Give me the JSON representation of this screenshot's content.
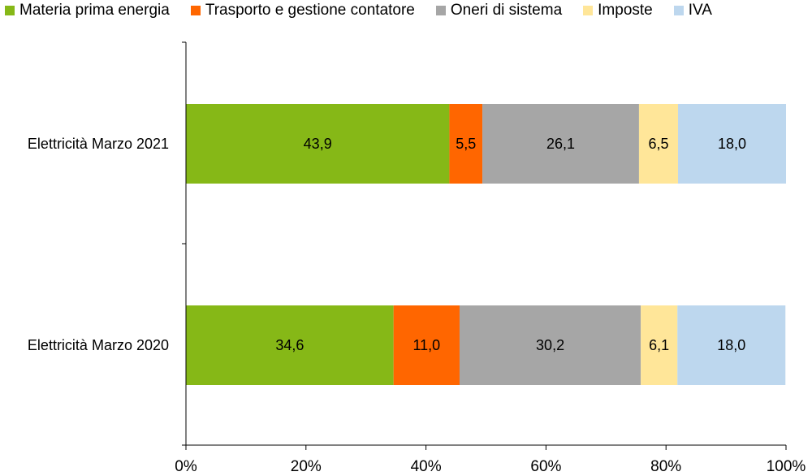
{
  "chart_data": {
    "type": "bar",
    "orientation": "horizontal",
    "stacked": true,
    "title": "",
    "xlabel": "",
    "ylabel": "",
    "xlim": [
      0,
      100
    ],
    "x_ticks": [
      "0%",
      "20%",
      "40%",
      "60%",
      "80%",
      "100%"
    ],
    "categories": [
      "Elettricità Marzo 2021",
      "Elettricità Marzo 2020"
    ],
    "series": [
      {
        "name": "Materia prima energia",
        "color": "#86B817",
        "values": [
          43.9,
          34.6
        ],
        "labels": [
          "43,9",
          "34,6"
        ]
      },
      {
        "name": "Trasporto e gestione contatore",
        "color": "#FF6600",
        "values": [
          5.5,
          11.0
        ],
        "labels": [
          "5,5",
          "11,0"
        ]
      },
      {
        "name": "Oneri di sistema",
        "color": "#A6A6A6",
        "values": [
          26.1,
          30.2
        ],
        "labels": [
          "26,1",
          "30,2"
        ]
      },
      {
        "name": "Imposte",
        "color": "#FFE699",
        "values": [
          6.5,
          6.1
        ],
        "labels": [
          "6,5",
          "6,1"
        ]
      },
      {
        "name": "IVA",
        "color": "#BDD7EE",
        "values": [
          18.0,
          18.0
        ],
        "labels": [
          "18,0",
          "18,0"
        ]
      }
    ],
    "legend_position": "top",
    "grid": false
  }
}
